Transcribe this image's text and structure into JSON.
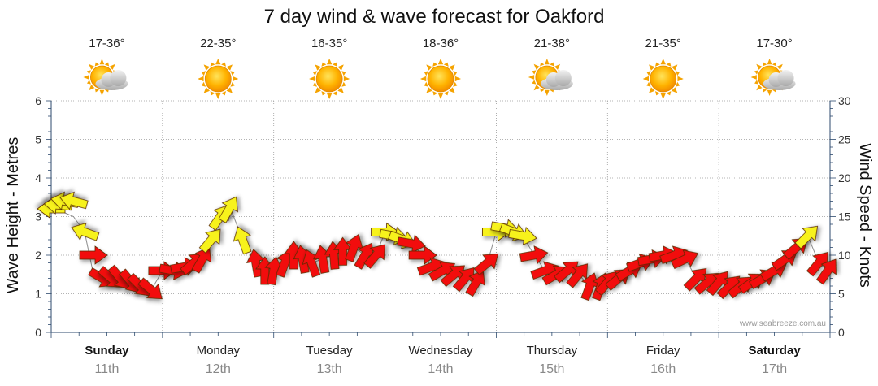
{
  "chart_data": {
    "type": "line",
    "title": "7 day wind & wave forecast for Oakford",
    "ylabel_left": "Wave Height - Metres",
    "ylabel_right": "Wind Speed - Knots",
    "ylim_left": [
      0,
      6
    ],
    "ylim_right": [
      0,
      30
    ],
    "yticks_left": [
      "0",
      "1",
      "2",
      "3",
      "4",
      "5",
      "6"
    ],
    "yticks_right": [
      "0",
      "5",
      "10",
      "15",
      "20",
      "25",
      "30"
    ],
    "watermark": "www.seabreeze.com.au",
    "days": [
      {
        "name": "Sunday",
        "date": "11th",
        "temp": "17-36°",
        "weather": "partly-cloudy",
        "bold": true
      },
      {
        "name": "Monday",
        "date": "12th",
        "temp": "22-35°",
        "weather": "sunny",
        "bold": false
      },
      {
        "name": "Tuesday",
        "date": "13th",
        "temp": "16-35°",
        "weather": "sunny",
        "bold": false
      },
      {
        "name": "Wednesday",
        "date": "14th",
        "temp": "18-36°",
        "weather": "sunny",
        "bold": false
      },
      {
        "name": "Thursday",
        "date": "15th",
        "temp": "21-38°",
        "weather": "partly-cloudy",
        "bold": false
      },
      {
        "name": "Friday",
        "date": "16th",
        "temp": "21-35°",
        "weather": "sunny",
        "bold": false
      },
      {
        "name": "Saturday",
        "date": "17th",
        "temp": "17-30°",
        "weather": "partly-cloudy",
        "bold": true
      }
    ],
    "series": [
      {
        "name": "Wind Speed (knots)",
        "x_days": [
          0.0,
          0.06,
          0.12,
          0.2,
          0.3,
          0.38,
          0.46,
          0.54,
          0.62,
          0.72,
          0.8,
          0.9,
          1.0,
          1.1,
          1.2,
          1.28,
          1.36,
          1.44,
          1.52,
          1.6,
          1.72,
          1.84,
          1.92,
          2.0,
          2.1,
          2.18,
          2.26,
          2.34,
          2.44,
          2.54,
          2.62,
          2.72,
          2.82,
          2.92,
          3.0,
          3.08,
          3.16,
          3.24,
          3.34,
          3.42,
          3.52,
          3.62,
          3.72,
          3.82,
          3.92,
          4.0,
          4.08,
          4.16,
          4.24,
          4.34,
          4.44,
          4.54,
          4.64,
          4.74,
          4.84,
          4.94,
          5.0,
          5.1,
          5.2,
          5.3,
          5.4,
          5.5,
          5.6,
          5.7,
          5.8,
          5.9,
          6.0,
          6.1,
          6.2,
          6.3,
          6.4,
          6.5,
          6.6,
          6.7,
          6.8,
          6.9,
          6.98
        ],
        "values": [
          16,
          16.5,
          17,
          17,
          13,
          10,
          7,
          7,
          7,
          6.5,
          6,
          5.5,
          8,
          8,
          8.5,
          9,
          9.5,
          12,
          15,
          16,
          12,
          9,
          8,
          8,
          9,
          10,
          9.5,
          9,
          9.5,
          10,
          10.5,
          11,
          10,
          10,
          13,
          12.5,
          12,
          11.5,
          10,
          8.5,
          8,
          7.5,
          7,
          6.5,
          9,
          13,
          13.5,
          13,
          12.5,
          10,
          8,
          7.5,
          8,
          7.5,
          6,
          6,
          6.5,
          7,
          8,
          9,
          9.5,
          10,
          10,
          9.5,
          7,
          6.5,
          6.5,
          6,
          6,
          6.5,
          7,
          8,
          9.5,
          11,
          12.5,
          9,
          8
        ]
      },
      {
        "name": "Wind Direction (deg from)",
        "values": [
          90,
          95,
          100,
          105,
          110,
          270,
          300,
          310,
          320,
          320,
          315,
          310,
          270,
          280,
          260,
          230,
          210,
          220,
          215,
          210,
          160,
          170,
          180,
          190,
          200,
          180,
          170,
          160,
          170,
          175,
          180,
          200,
          210,
          220,
          270,
          280,
          290,
          280,
          270,
          250,
          240,
          230,
          220,
          210,
          230,
          270,
          280,
          290,
          280,
          260,
          250,
          240,
          230,
          220,
          200,
          200,
          220,
          230,
          240,
          250,
          260,
          260,
          250,
          245,
          225,
          230,
          220,
          225,
          230,
          235,
          240,
          240,
          235,
          230,
          225,
          220,
          215
        ]
      },
      {
        "name": "Wave Height (m)",
        "values": [
          3.2,
          3.2,
          3.1,
          3.0,
          2.6,
          1.5,
          1.4,
          1.3,
          1.3,
          1.2,
          1.1,
          1.1,
          1.6,
          1.6,
          1.7,
          1.8,
          1.9,
          2.4,
          3.2,
          3.3,
          2.4,
          1.8,
          1.6,
          1.6,
          1.8,
          2.0,
          1.9,
          1.8,
          1.9,
          2.0,
          2.1,
          2.2,
          2.0,
          2.0,
          2.6,
          2.5,
          2.4,
          2.3,
          2.0,
          1.7,
          1.6,
          1.5,
          1.4,
          1.3,
          1.8,
          2.6,
          2.7,
          2.6,
          2.5,
          2.0,
          1.6,
          1.5,
          1.6,
          1.5,
          1.2,
          1.2,
          1.3,
          1.4,
          1.6,
          1.8,
          1.9,
          2.0,
          2.0,
          1.9,
          1.4,
          1.3,
          1.3,
          1.2,
          1.2,
          1.3,
          1.4,
          1.6,
          1.9,
          2.2,
          2.5,
          1.8,
          1.6
        ]
      }
    ]
  }
}
